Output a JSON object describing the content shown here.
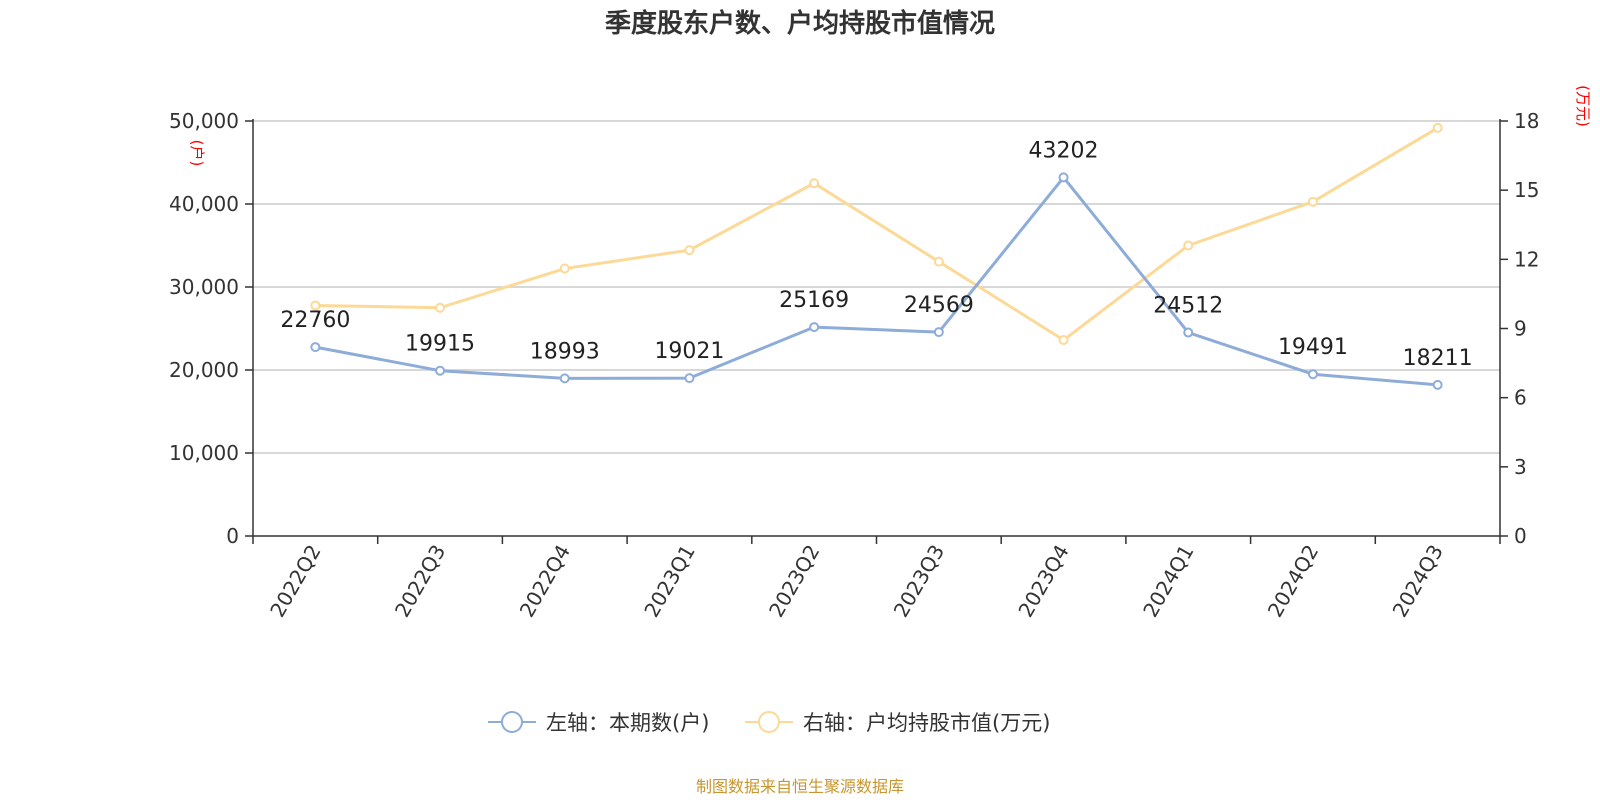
{
  "chart_data": {
    "type": "line",
    "title": "季度股东户数、户均持股市值情况",
    "categories": [
      "2022Q2",
      "2022Q3",
      "2022Q4",
      "2023Q1",
      "2023Q2",
      "2023Q3",
      "2023Q4",
      "2024Q1",
      "2024Q2",
      "2024Q3"
    ],
    "left_axis": {
      "unit_label": "(户)",
      "ylim": [
        0,
        50000
      ],
      "ticks": [
        0,
        10000,
        20000,
        30000,
        40000,
        50000
      ],
      "tick_labels": [
        "0",
        "10,000",
        "20,000",
        "30,000",
        "40,000",
        "50,000"
      ]
    },
    "right_axis": {
      "unit_label": "(万元)",
      "ylim": [
        0,
        18
      ],
      "ticks": [
        0,
        3,
        6,
        9,
        12,
        15,
        18
      ],
      "tick_labels": [
        "0",
        "3",
        "6",
        "9",
        "12",
        "15",
        "18"
      ]
    },
    "series": [
      {
        "name": "左轴：本期数(户)",
        "axis": "left",
        "color": "#8eacd8",
        "values": [
          22760,
          19915,
          18993,
          19021,
          25169,
          24569,
          43202,
          24512,
          19491,
          18211
        ],
        "data_labels": [
          "22760",
          "19915",
          "18993",
          "19021",
          "25169",
          "24569",
          "43202",
          "24512",
          "19491",
          "18211"
        ]
      },
      {
        "name": "右轴：户均持股市值(万元)",
        "axis": "right",
        "color": "#fcd997",
        "values": [
          10.0,
          9.9,
          11.6,
          12.4,
          15.3,
          11.9,
          8.5,
          12.6,
          14.5,
          17.7
        ]
      }
    ],
    "grid": true,
    "legend_position": "bottom-center",
    "source_note": "制图数据来自恒生聚源数据库"
  }
}
